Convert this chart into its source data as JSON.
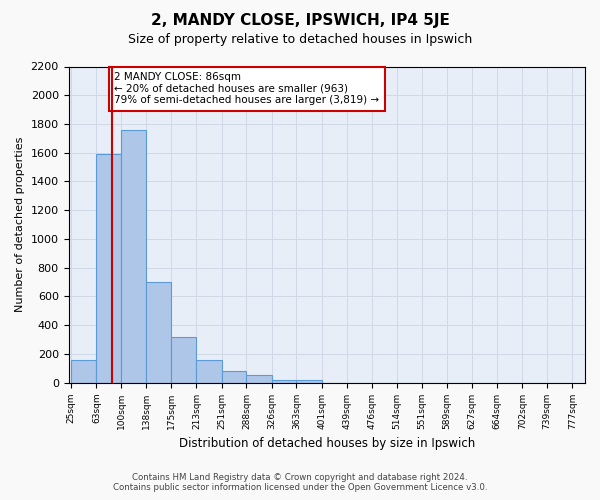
{
  "title": "2, MANDY CLOSE, IPSWICH, IP4 5JE",
  "subtitle": "Size of property relative to detached houses in Ipswich",
  "xlabel": "Distribution of detached houses by size in Ipswich",
  "ylabel": "Number of detached properties",
  "bin_labels": [
    "25sqm",
    "63sqm",
    "100sqm",
    "138sqm",
    "175sqm",
    "213sqm",
    "251sqm",
    "288sqm",
    "326sqm",
    "363sqm",
    "401sqm",
    "439sqm",
    "476sqm",
    "514sqm",
    "551sqm",
    "589sqm",
    "627sqm",
    "664sqm",
    "702sqm",
    "739sqm",
    "777sqm"
  ],
  "bin_edges": [
    25,
    63,
    100,
    138,
    175,
    213,
    251,
    288,
    326,
    363,
    401,
    439,
    476,
    514,
    551,
    589,
    627,
    664,
    702,
    739,
    777
  ],
  "bar_heights": [
    160,
    1590,
    1760,
    700,
    315,
    155,
    80,
    50,
    20,
    15,
    0,
    0,
    0,
    0,
    0,
    0,
    0,
    0,
    0,
    0
  ],
  "bar_color": "#aec6e8",
  "bar_edge_color": "#5b9bd5",
  "vline_x": 86,
  "vline_color": "#cc0000",
  "annotation_line1": "2 MANDY CLOSE: 86sqm",
  "annotation_line2": "← 20% of detached houses are smaller (963)",
  "annotation_line3": "79% of semi-detached houses are larger (3,819) →",
  "annotation_box_color": "#ffffff",
  "annotation_box_edge": "#cc0000",
  "ylim": [
    0,
    2200
  ],
  "yticks": [
    0,
    200,
    400,
    600,
    800,
    1000,
    1200,
    1400,
    1600,
    1800,
    2000,
    2200
  ],
  "grid_color": "#d0d8e8",
  "background_color": "#e8eef8",
  "fig_background": "#f9f9f9",
  "footer_line1": "Contains HM Land Registry data © Crown copyright and database right 2024.",
  "footer_line2": "Contains public sector information licensed under the Open Government Licence v3.0."
}
